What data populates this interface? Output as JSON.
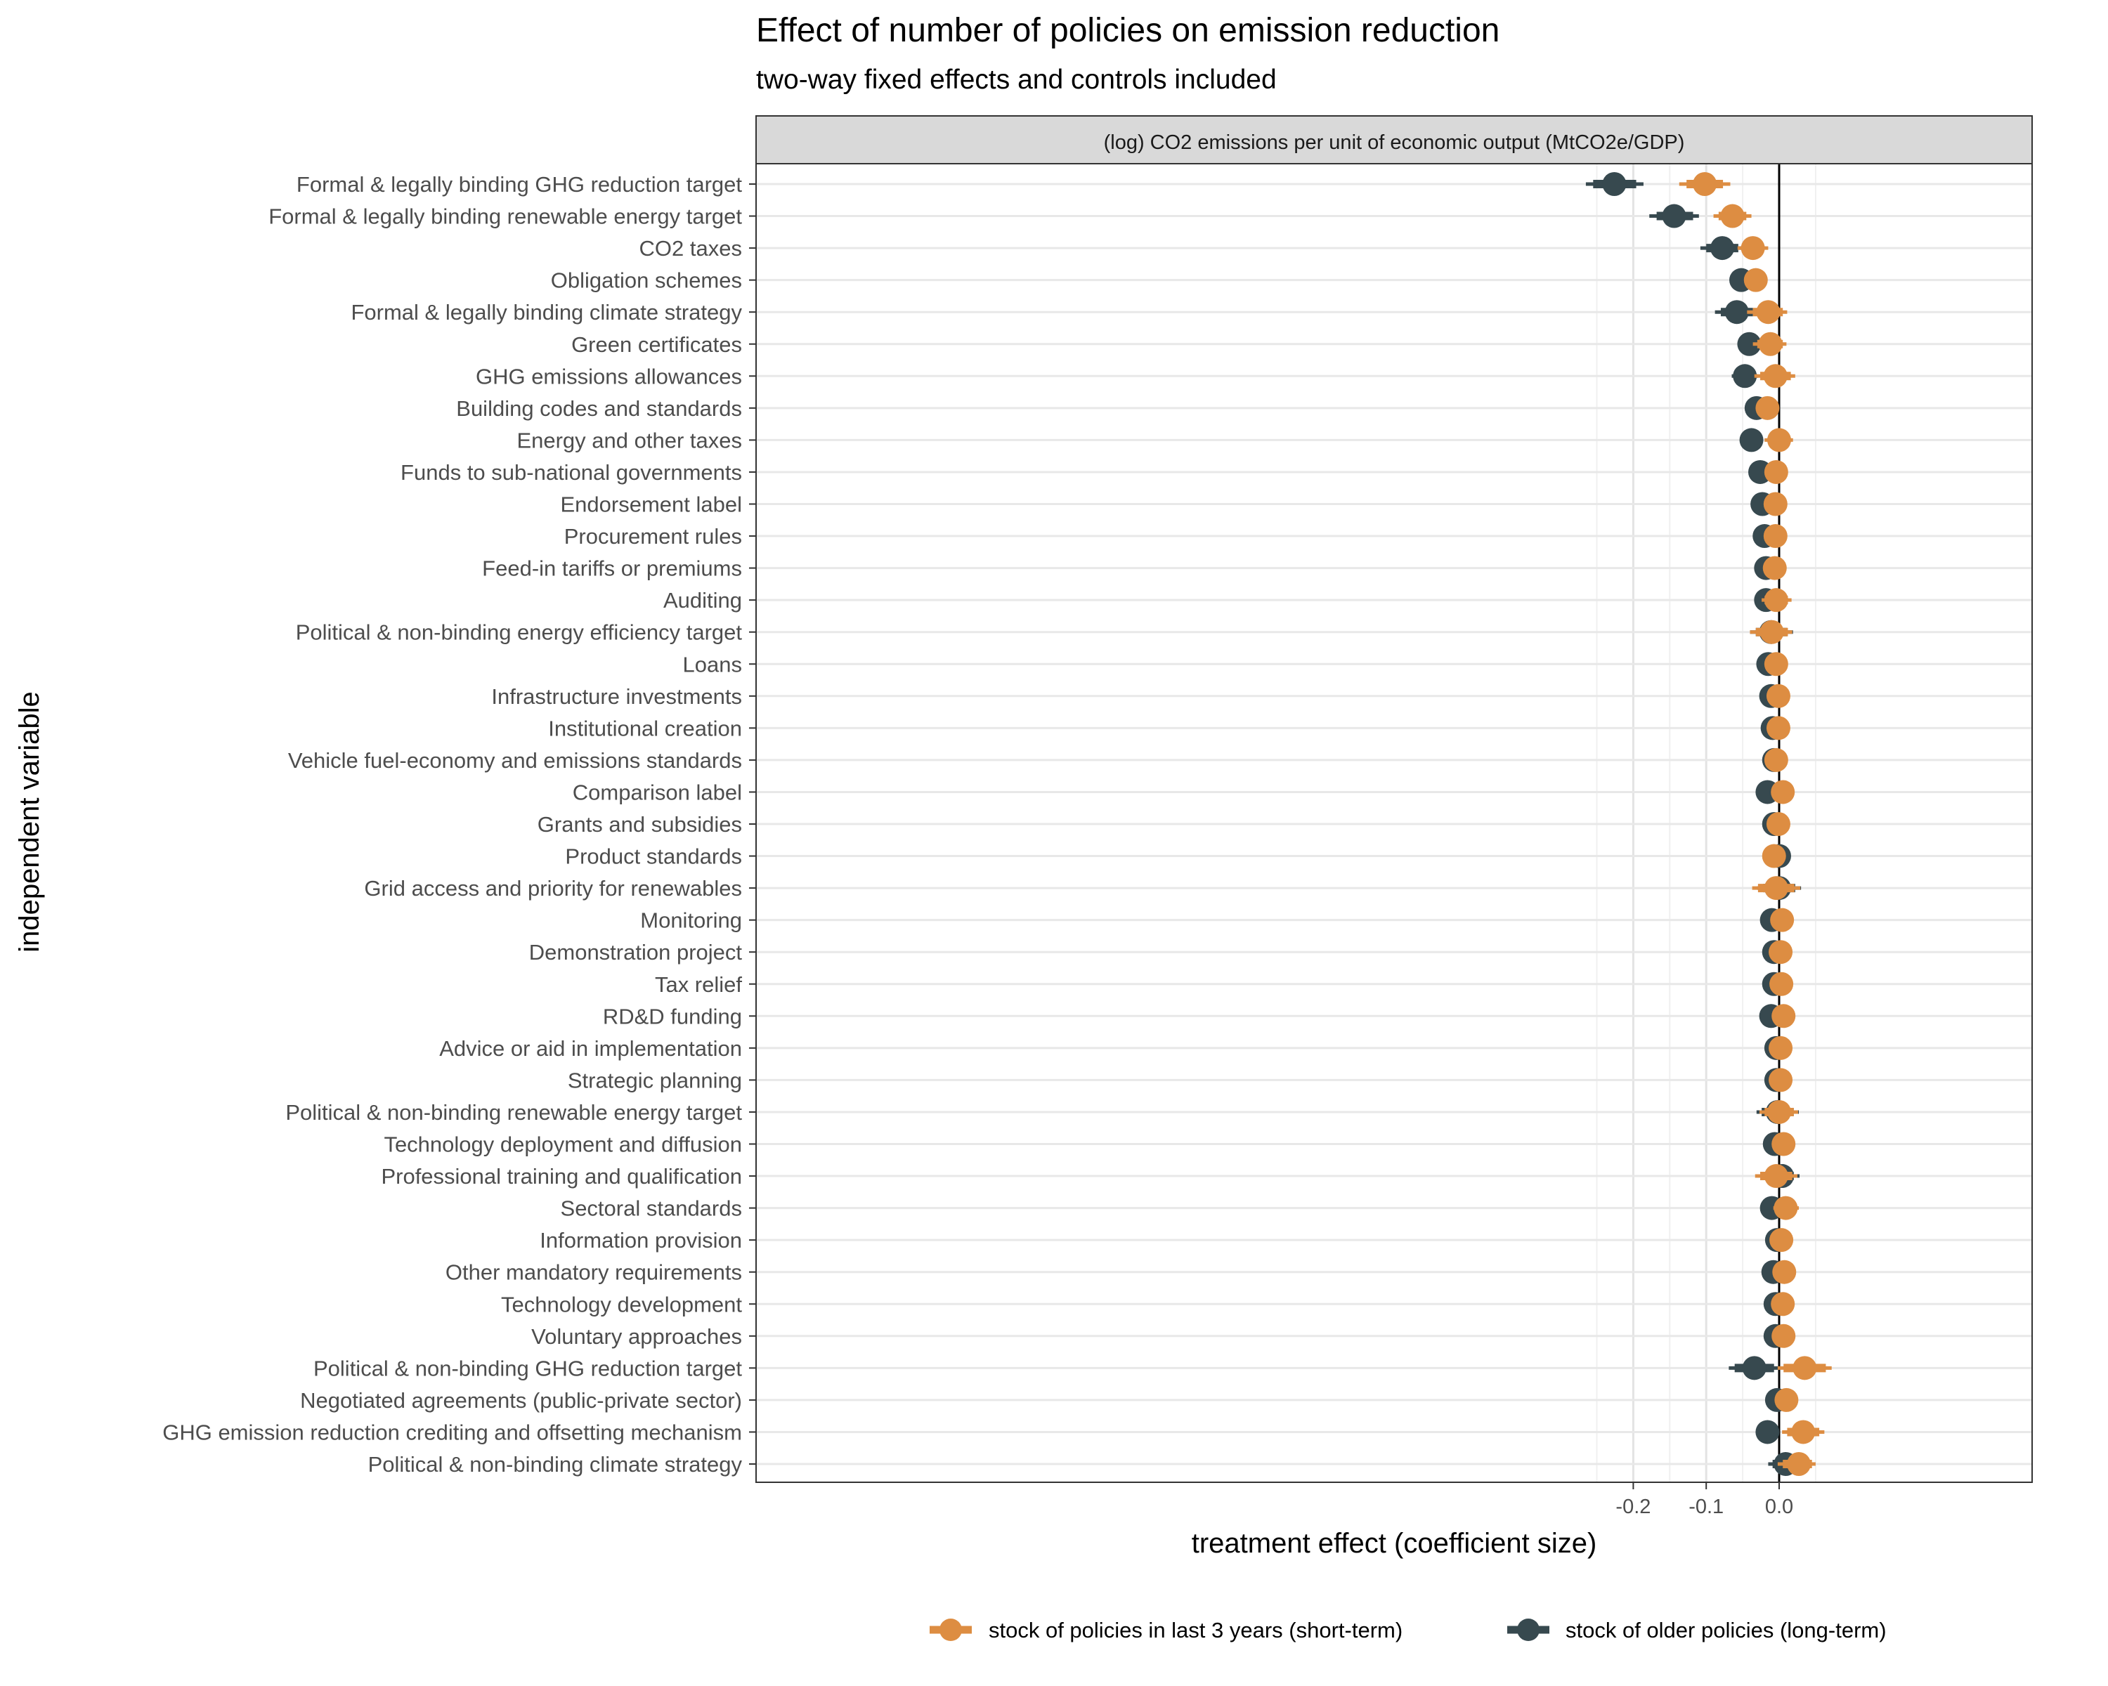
{
  "chart_data": {
    "type": "forest",
    "title": "Effect of number of policies on emission reduction",
    "subtitle": "two-way fixed effects and controls included",
    "facet_label": "(log) CO2 emissions per unit of economic output (MtCO2e/GDP)",
    "xlabel": "treatment effect (coefficient size)",
    "ylabel": "independent variable",
    "xlim": [
      -0.28,
      0.08
    ],
    "x_ticks": [
      -0.2,
      -0.1,
      0.0
    ],
    "x_tick_labels": [
      "-0.2",
      "-0.1",
      "0.0"
    ],
    "reference_line": 0,
    "grid": true,
    "legend_position": "bottom",
    "categories": [
      "Formal & legally binding GHG reduction target",
      "Formal & legally binding renewable energy target",
      "CO2 taxes",
      "Obligation schemes",
      "Formal & legally binding climate strategy",
      "Green certificates",
      "GHG emissions allowances",
      "Building codes and standards",
      "Energy and other taxes",
      "Funds to sub-national governments",
      "Endorsement label",
      "Procurement rules",
      "Feed-in tariffs or premiums",
      "Auditing",
      "Political & non-binding energy efficiency target",
      "Loans",
      "Infrastructure investments",
      "Institutional creation",
      "Vehicle fuel-economy and emissions standards",
      "Comparison label",
      "Grants and subsidies",
      "Product standards",
      "Grid access and priority for renewables",
      "Monitoring",
      "Demonstration project",
      "Tax relief",
      "RD&D funding",
      "Advice or aid in implementation",
      "Strategic planning",
      "Political & non-binding renewable energy target",
      "Technology deployment and diffusion",
      "Professional training and qualification",
      "Sectoral standards",
      "Information provision",
      "Other mandatory requirements",
      "Technology development",
      "Voluntary approaches",
      "Political & non-binding GHG reduction target",
      "Negotiated agreements (public-private sector)",
      "GHG emission reduction crediting and offsetting mechanism",
      "Political & non-binding climate strategy"
    ],
    "series": [
      {
        "name": "stock of older policies (long-term)",
        "color": "#37494f",
        "estimates": [
          -0.226,
          -0.144,
          -0.078,
          -0.052,
          -0.058,
          -0.041,
          -0.047,
          -0.031,
          -0.038,
          -0.026,
          -0.023,
          -0.02,
          -0.018,
          -0.018,
          -0.011,
          -0.015,
          -0.011,
          -0.009,
          -0.007,
          -0.016,
          -0.007,
          0.0,
          0.0,
          -0.01,
          -0.007,
          -0.007,
          -0.011,
          -0.004,
          -0.004,
          -0.002,
          -0.006,
          0.004,
          -0.01,
          -0.003,
          -0.008,
          -0.005,
          -0.005,
          -0.034,
          -0.003,
          -0.016,
          0.009
        ],
        "ci_inner": [
          [
            -0.255,
            -0.196
          ],
          [
            -0.168,
            -0.118
          ],
          [
            -0.1,
            -0.056
          ],
          [
            -0.06,
            -0.044
          ],
          [
            -0.08,
            -0.036
          ],
          [
            -0.052,
            -0.03
          ],
          [
            -0.06,
            -0.034
          ],
          [
            -0.04,
            -0.022
          ],
          [
            -0.048,
            -0.028
          ],
          [
            -0.032,
            -0.02
          ],
          [
            -0.03,
            -0.016
          ],
          [
            -0.026,
            -0.014
          ],
          [
            -0.024,
            -0.012
          ],
          [
            -0.03,
            -0.006
          ],
          [
            -0.032,
            0.011
          ],
          [
            -0.02,
            -0.01
          ],
          [
            -0.016,
            -0.006
          ],
          [
            -0.013,
            -0.005
          ],
          [
            -0.011,
            -0.003
          ],
          [
            -0.022,
            -0.01
          ],
          [
            -0.009,
            -0.005
          ],
          [
            -0.005,
            0.005
          ],
          [
            -0.022,
            0.022
          ],
          [
            -0.015,
            -0.005
          ],
          [
            -0.009,
            -0.005
          ],
          [
            -0.009,
            -0.005
          ],
          [
            -0.016,
            -0.006
          ],
          [
            -0.006,
            -0.002
          ],
          [
            -0.006,
            -0.002
          ],
          [
            -0.024,
            0.02
          ],
          [
            -0.008,
            -0.004
          ],
          [
            -0.014,
            0.02
          ],
          [
            -0.017,
            -0.003
          ],
          [
            -0.005,
            -0.001
          ],
          [
            -0.012,
            -0.004
          ],
          [
            -0.007,
            -0.003
          ],
          [
            -0.007,
            -0.003
          ],
          [
            -0.061,
            -0.007
          ],
          [
            -0.005,
            -0.001
          ],
          [
            -0.027,
            -0.005
          ],
          [
            -0.009,
            0.027
          ]
        ],
        "ci_outer": [
          [
            -0.265,
            -0.186
          ],
          [
            -0.178,
            -0.11
          ],
          [
            -0.108,
            -0.048
          ],
          [
            -0.064,
            -0.04
          ],
          [
            -0.088,
            -0.028
          ],
          [
            -0.057,
            -0.025
          ],
          [
            -0.065,
            -0.029
          ],
          [
            -0.045,
            -0.017
          ],
          [
            -0.052,
            -0.024
          ],
          [
            -0.035,
            -0.017
          ],
          [
            -0.033,
            -0.013
          ],
          [
            -0.029,
            -0.011
          ],
          [
            -0.027,
            -0.009
          ],
          [
            -0.034,
            -0.002
          ],
          [
            -0.04,
            0.019
          ],
          [
            -0.023,
            -0.007
          ],
          [
            -0.019,
            -0.003
          ],
          [
            -0.016,
            -0.002
          ],
          [
            -0.014,
            0.0
          ],
          [
            -0.025,
            -0.007
          ],
          [
            -0.011,
            -0.003
          ],
          [
            -0.009,
            0.009
          ],
          [
            -0.03,
            0.03
          ],
          [
            -0.018,
            -0.002
          ],
          [
            -0.011,
            -0.003
          ],
          [
            -0.011,
            -0.003
          ],
          [
            -0.019,
            -0.003
          ],
          [
            -0.008,
            0.0
          ],
          [
            -0.008,
            0.0
          ],
          [
            -0.031,
            0.027
          ],
          [
            -0.01,
            -0.002
          ],
          [
            -0.022,
            0.028
          ],
          [
            -0.02,
            0.0
          ],
          [
            -0.007,
            0.001
          ],
          [
            -0.015,
            -0.001
          ],
          [
            -0.009,
            -0.001
          ],
          [
            -0.009,
            -0.001
          ],
          [
            -0.069,
            0.001
          ],
          [
            -0.007,
            0.001
          ],
          [
            -0.031,
            -0.001
          ],
          [
            -0.015,
            0.033
          ]
        ]
      },
      {
        "name": "stock of policies in last 3 years (short-term)",
        "color": "#dd8d42",
        "estimates": [
          -0.102,
          -0.064,
          -0.036,
          -0.032,
          -0.015,
          -0.012,
          -0.005,
          -0.016,
          0.0,
          -0.004,
          -0.005,
          -0.005,
          -0.006,
          -0.004,
          -0.01,
          -0.004,
          -0.001,
          -0.001,
          -0.004,
          0.005,
          -0.001,
          -0.007,
          -0.004,
          0.004,
          0.002,
          0.003,
          0.006,
          0.002,
          0.002,
          0.0,
          0.006,
          -0.004,
          0.009,
          0.003,
          0.007,
          0.005,
          0.006,
          0.035,
          0.01,
          0.033,
          0.027
        ],
        "ci_inner": [
          [
            -0.127,
            -0.077
          ],
          [
            -0.083,
            -0.045
          ],
          [
            -0.051,
            -0.021
          ],
          [
            -0.04,
            -0.024
          ],
          [
            -0.036,
            0.005
          ],
          [
            -0.03,
            0.005
          ],
          [
            -0.026,
            0.016
          ],
          [
            -0.025,
            -0.007
          ],
          [
            -0.015,
            0.015
          ],
          [
            -0.01,
            0.002
          ],
          [
            -0.012,
            0.002
          ],
          [
            -0.012,
            0.002
          ],
          [
            -0.013,
            0.001
          ],
          [
            -0.02,
            0.012
          ],
          [
            -0.032,
            0.012
          ],
          [
            -0.01,
            0.002
          ],
          [
            -0.008,
            0.006
          ],
          [
            -0.007,
            0.005
          ],
          [
            -0.008,
            0.0
          ],
          [
            -0.001,
            0.011
          ],
          [
            -0.004,
            0.002
          ],
          [
            -0.014,
            0.0
          ],
          [
            -0.029,
            0.021
          ],
          [
            -0.002,
            0.01
          ],
          [
            -0.001,
            0.005
          ],
          [
            0.0,
            0.006
          ],
          [
            0.0,
            0.012
          ],
          [
            0.0,
            0.004
          ],
          [
            0.0,
            0.004
          ],
          [
            -0.02,
            0.02
          ],
          [
            0.001,
            0.011
          ],
          [
            -0.026,
            0.018
          ],
          [
            -0.004,
            0.022
          ],
          [
            0.001,
            0.005
          ],
          [
            0.0,
            0.014
          ],
          [
            0.001,
            0.009
          ],
          [
            0.001,
            0.011
          ],
          [
            0.006,
            0.064
          ],
          [
            0.005,
            0.015
          ],
          [
            0.011,
            0.055
          ],
          [
            0.005,
            0.045
          ]
        ],
        "ci_outer": [
          [
            -0.137,
            -0.067
          ],
          [
            -0.09,
            -0.038
          ],
          [
            -0.057,
            -0.015
          ],
          [
            -0.044,
            -0.02
          ],
          [
            -0.044,
            0.011
          ],
          [
            -0.036,
            0.01
          ],
          [
            -0.034,
            0.022
          ],
          [
            -0.029,
            -0.003
          ],
          [
            -0.02,
            0.019
          ],
          [
            -0.013,
            0.004
          ],
          [
            -0.015,
            0.008
          ],
          [
            -0.015,
            0.004
          ],
          [
            -0.016,
            0.004
          ],
          [
            -0.024,
            0.017
          ],
          [
            -0.04,
            0.018
          ],
          [
            -0.013,
            0.009
          ],
          [
            -0.011,
            0.009
          ],
          [
            -0.01,
            0.009
          ],
          [
            -0.011,
            0.004
          ],
          [
            -0.004,
            0.015
          ],
          [
            -0.006,
            0.004
          ],
          [
            -0.017,
            0.002
          ],
          [
            -0.037,
            0.029
          ],
          [
            -0.005,
            0.013
          ],
          [
            -0.003,
            0.007
          ],
          [
            -0.002,
            0.008
          ],
          [
            -0.003,
            0.017
          ],
          [
            -0.002,
            0.006
          ],
          [
            -0.002,
            0.006
          ],
          [
            -0.027,
            0.026
          ],
          [
            -0.002,
            0.014
          ],
          [
            -0.033,
            0.025
          ],
          [
            -0.008,
            0.027
          ],
          [
            -0.001,
            0.007
          ],
          [
            -0.003,
            0.02
          ],
          [
            -0.002,
            0.012
          ],
          [
            -0.002,
            0.014
          ],
          [
            -0.002,
            0.072
          ],
          [
            0.002,
            0.018
          ],
          [
            0.004,
            0.062
          ],
          [
            -0.002,
            0.05
          ]
        ]
      }
    ]
  }
}
